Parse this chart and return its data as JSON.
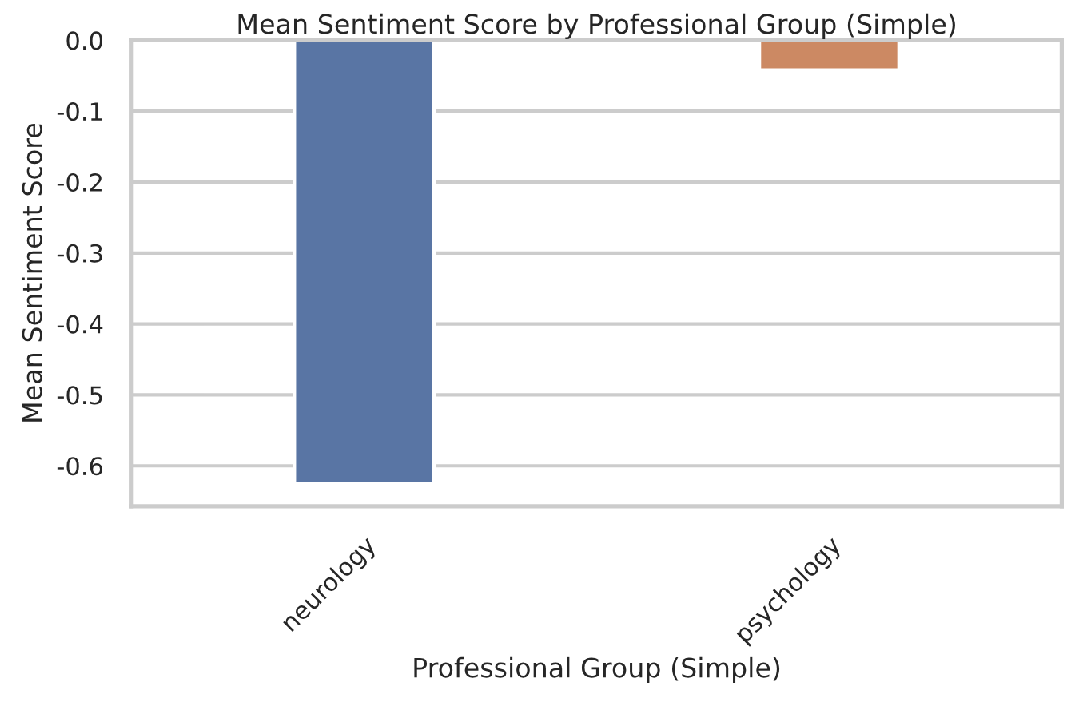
{
  "chart_data": {
    "type": "bar",
    "title": "Mean Sentiment Score by Professional Group (Simple)",
    "xlabel": "Professional Group (Simple)",
    "ylabel": "Mean Sentiment Score",
    "categories": [
      "neurology",
      "psychology"
    ],
    "values": [
      -0.625,
      -0.042
    ],
    "colors": [
      "#5975a4",
      "#cc8963"
    ],
    "ylim": [
      -0.657,
      0.0
    ],
    "yticks": [
      {
        "value": 0,
        "label": "0.0"
      },
      -0.1,
      -0.2,
      -0.3,
      -0.4,
      -0.5,
      -0.6
    ],
    "grid": "y"
  }
}
